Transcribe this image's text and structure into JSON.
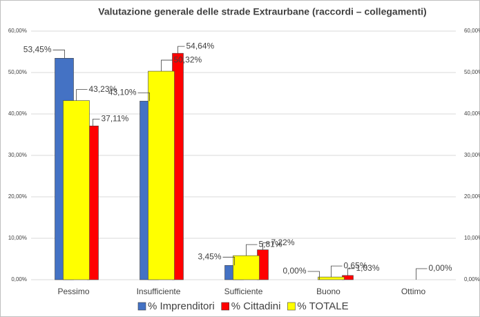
{
  "chart_data": {
    "type": "bar",
    "title": "Valutazione generale delle strade Extraurbane (raccordi – collegamenti)",
    "categories": [
      "Pessimo",
      "Insufficiente",
      "Sufficiente",
      "Buono",
      "Ottimo"
    ],
    "series": [
      {
        "name": "% Imprenditori",
        "color": "#4472c4",
        "values": [
          53.45,
          43.1,
          3.45,
          0.0,
          null
        ],
        "value_labels": [
          "53,45%",
          "43,10%",
          "3,45%",
          "0,00%",
          null
        ]
      },
      {
        "name": "% Cittadini",
        "color": "#ff0000",
        "values": [
          37.11,
          54.64,
          7.22,
          1.03,
          null
        ],
        "value_labels": [
          "37,11%",
          "54,64%",
          "7,22%",
          "1,03%",
          null
        ]
      },
      {
        "name": "% TOTALE",
        "color": "#ffff00",
        "values": [
          43.23,
          50.32,
          5.81,
          0.65,
          0.0
        ],
        "value_labels": [
          "43,23%",
          "50,32%",
          "5,81%",
          "0,65%",
          "0,00%"
        ]
      }
    ],
    "ylim": [
      0,
      60
    ],
    "yticks": [
      {
        "value": 0,
        "label": "0,00%"
      },
      {
        "value": 10,
        "label": "10,00%"
      },
      {
        "value": 20,
        "label": "20,00%"
      },
      {
        "value": 30,
        "label": "30,00%"
      },
      {
        "value": 40,
        "label": "40,00%"
      },
      {
        "value": 50,
        "label": "50,00%"
      },
      {
        "value": 60,
        "label": "60,00%"
      }
    ],
    "grid": true
  }
}
